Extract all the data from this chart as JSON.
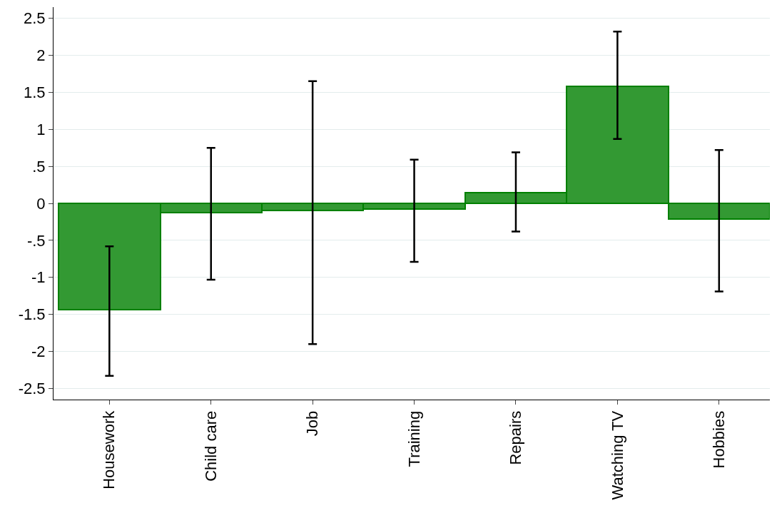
{
  "chart_data": {
    "type": "bar",
    "categories": [
      "Housework",
      "Child care",
      "Job",
      "Training",
      "Repairs",
      "Watching TV",
      "Hobbies"
    ],
    "values": [
      -1.44,
      -0.13,
      -0.1,
      -0.08,
      0.14,
      1.58,
      -0.21
    ],
    "errors": [
      [
        -2.33,
        -0.58
      ],
      [
        -1.03,
        0.75
      ],
      [
        -1.9,
        1.65
      ],
      [
        -0.79,
        0.59
      ],
      [
        -0.38,
        0.69
      ],
      [
        0.87,
        2.32
      ],
      [
        -1.19,
        0.72
      ]
    ],
    "color": "#339933",
    "ylim": [
      -2.65,
      2.65
    ],
    "yticks": [
      {
        "value": -2.5,
        "label": "-2.5"
      },
      {
        "value": -2,
        "label": "-2"
      },
      {
        "value": -1.5,
        "label": "-1.5"
      },
      {
        "value": -1,
        "label": "-1"
      },
      {
        "value": -0.5,
        "label": "-.5"
      },
      0,
      {
        "value": 0.5,
        "label": ".5"
      },
      1,
      1.5,
      2,
      2.5
    ],
    "grid": "y"
  }
}
